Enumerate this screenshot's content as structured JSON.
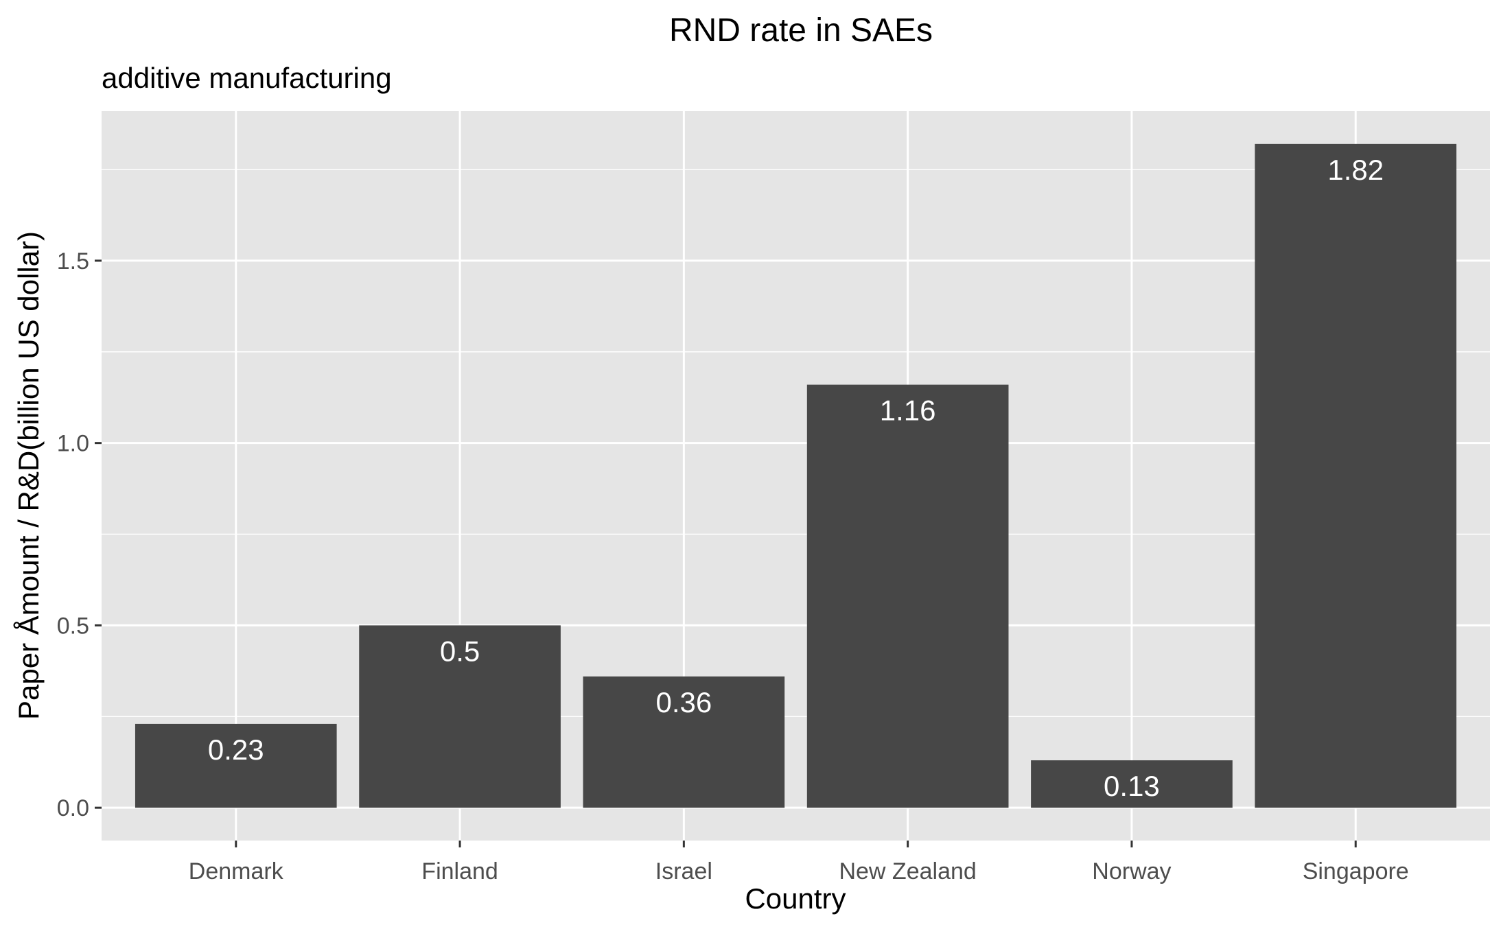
{
  "chart_data": {
    "type": "bar",
    "title": "RND rate in SAEs",
    "subtitle": "additive manufacturing",
    "xlabel": "Country",
    "ylabel": "Paper Åmount / R&D(billion US dollar)",
    "categories": [
      "Denmark",
      "Finland",
      "Israel",
      "New Zealand",
      "Norway",
      "Singapore"
    ],
    "values": [
      0.23,
      0.5,
      0.36,
      1.16,
      0.13,
      1.82
    ],
    "data_labels": [
      "0.23",
      "0.5",
      "0.36",
      "1.16",
      "0.13",
      "1.82"
    ],
    "ylim": [
      -0.09,
      1.91
    ],
    "yticks": [
      0.0,
      0.5,
      1.0,
      1.5
    ],
    "ytick_labels": [
      "0.0",
      "0.5",
      "1.0",
      "1.5"
    ],
    "grid": true,
    "legend": "none",
    "colors": {
      "panel_background": "#e5e5e5",
      "grid": "#ffffff",
      "bar_fill": "#474747",
      "bar_label": "#ffffff",
      "tick_label": "#4d4d4d",
      "tick_mark": "#333333"
    }
  }
}
